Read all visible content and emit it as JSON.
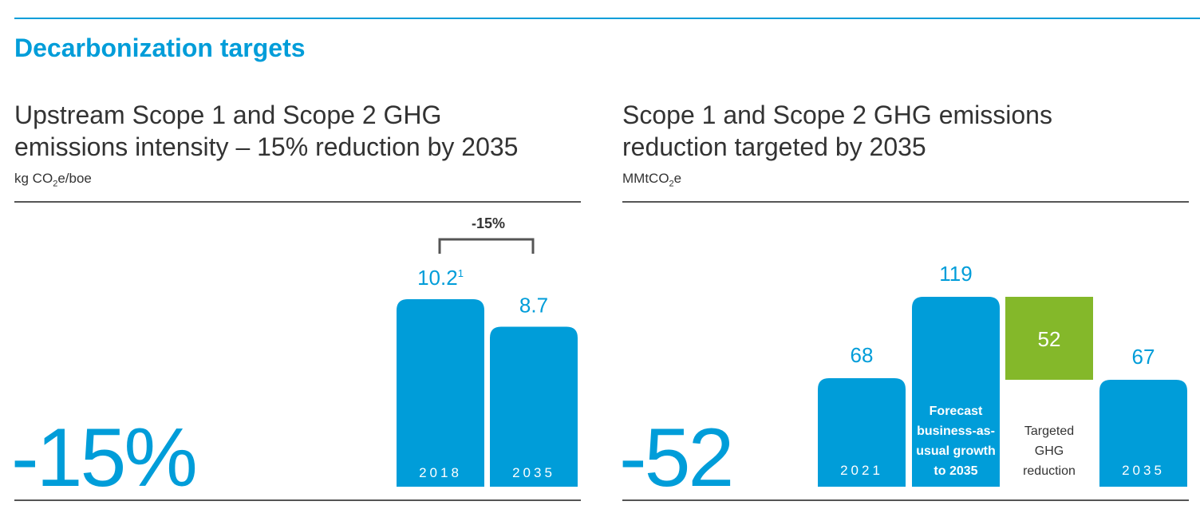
{
  "page": {
    "title": "Decarbonization targets",
    "accent_color": "#009dd9",
    "reduction_color": "#84b82a"
  },
  "chart_data": [
    {
      "type": "bar",
      "title_line1": "Upstream Scope 1 and Scope 2 GHG",
      "title_line2": "emissions intensity – 15% reduction by 2035",
      "unit_prefix": "kg CO",
      "unit_sub": "2",
      "unit_suffix": "e/boe",
      "big_number": "-15%",
      "bracket_label": "-15%",
      "categories": [
        "2018",
        "2035"
      ],
      "values": [
        10.2,
        8.7
      ],
      "value_labels": [
        "10.2",
        "8.7"
      ],
      "footnote_marks": [
        "1",
        ""
      ]
    },
    {
      "type": "bar",
      "title_line1": "Scope 1 and Scope 2 GHG emissions",
      "title_line2": "reduction targeted by 2035",
      "unit_prefix": "MMtCO",
      "unit_sub": "2",
      "unit_suffix": "e",
      "big_number": "-52",
      "bars": [
        {
          "label": "2021",
          "value": 68,
          "value_label": "68"
        },
        {
          "label": "Forecast business-as-usual growth to 2035",
          "label_lines": [
            "Forecast",
            "business-as-",
            "usual growth",
            "to 2035"
          ],
          "value": 119,
          "value_label": "119"
        },
        {
          "label": "Targeted GHG reduction",
          "label_lines": [
            "Targeted",
            "GHG",
            "reduction"
          ],
          "value": 52,
          "value_label": "52",
          "from": 67,
          "to": 119
        },
        {
          "label": "2035",
          "value": 67,
          "value_label": "67"
        }
      ]
    }
  ]
}
